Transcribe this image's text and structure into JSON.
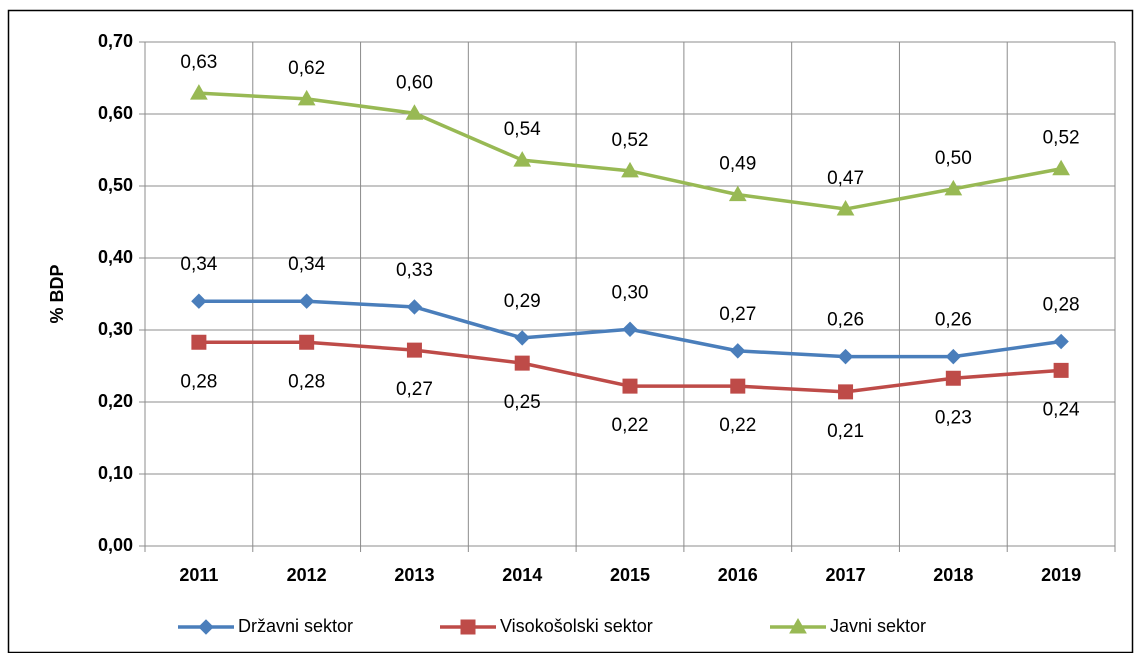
{
  "chart_data": {
    "type": "line",
    "y_label": "% BDP",
    "categories": [
      "2011",
      "2012",
      "2013",
      "2014",
      "2015",
      "2016",
      "2017",
      "2018",
      "2019"
    ],
    "series": [
      {
        "name": "Državni sektor",
        "color": "#4a7ebb",
        "marker": "diamond",
        "values": [
          0.34,
          0.34,
          0.332,
          0.289,
          0.301,
          0.271,
          0.263,
          0.263,
          0.284
        ],
        "value_labels": [
          "0,34",
          "0,34",
          "0,33",
          "0,29",
          "0,30",
          "0,27",
          "0,26",
          "0,26",
          "0,28"
        ]
      },
      {
        "name": "Visokošolski sektor",
        "color": "#be4b48",
        "marker": "square",
        "values": [
          0.283,
          0.283,
          0.272,
          0.254,
          0.222,
          0.222,
          0.214,
          0.233,
          0.244
        ],
        "value_labels": [
          "0,28",
          "0,28",
          "0,27",
          "0,25",
          "0,22",
          "0,22",
          "0,21",
          "0,23",
          "0,24"
        ]
      },
      {
        "name": "Javni sektor",
        "color": "#98b954",
        "marker": "triangle",
        "values": [
          0.629,
          0.621,
          0.601,
          0.536,
          0.521,
          0.488,
          0.468,
          0.496,
          0.524
        ],
        "value_labels": [
          "0,63",
          "0,62",
          "0,60",
          "0,54",
          "0,52",
          "0,49",
          "0,47",
          "0,50",
          "0,52"
        ]
      }
    ],
    "ylim": [
      0,
      0.7
    ],
    "yticks": [
      {
        "value": 0,
        "label": "0,00"
      },
      {
        "value": 0.1,
        "label": "0,10"
      },
      {
        "value": 0.2,
        "label": "0,20"
      },
      {
        "value": 0.3,
        "label": "0,30"
      },
      {
        "value": 0.4,
        "label": "0,40"
      },
      {
        "value": 0.5,
        "label": "0,50"
      },
      {
        "value": 0.6,
        "label": "0,60"
      },
      {
        "value": 0.7,
        "label": "0,70"
      }
    ],
    "grid": true,
    "legend": "bottom"
  }
}
